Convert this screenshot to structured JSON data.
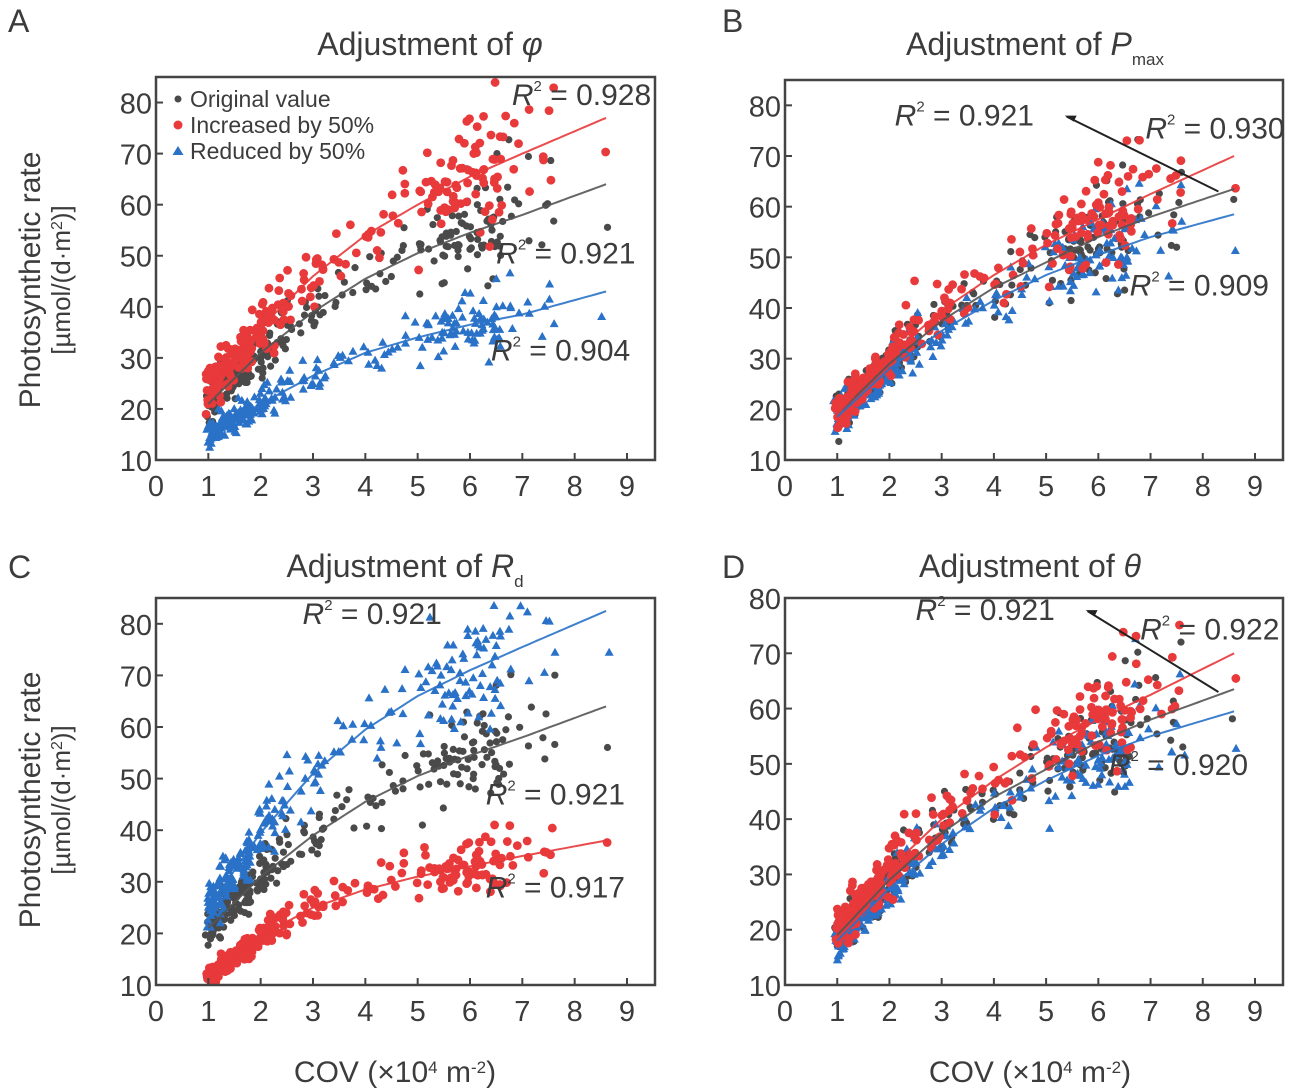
{
  "figure": {
    "ylabel_line1": "Photosynthetic rate",
    "ylabel_line2_prefix": "[µmol/(d·m",
    "ylabel_line2_sup": "2",
    "ylabel_line2_suffix": ")]",
    "xlabel_prefix": "COV (×10",
    "xlabel_sup1": "4",
    "xlabel_mid": " m",
    "xlabel_sup2": "-2",
    "xlabel_suffix": ")"
  },
  "chart_data": [
    {
      "type": "scatter",
      "panel_label": "A",
      "title_prefix": "Adjustment of ",
      "title_symbol": "φ",
      "title_subscript": "",
      "xlabel": "",
      "ylabel": "Photosynthetic rate [µmol/(d·m2)]",
      "xlim": [
        0,
        9.5
      ],
      "ylim": [
        10,
        85
      ],
      "xticks": [
        0,
        1,
        2,
        3,
        4,
        5,
        6,
        7,
        8,
        9
      ],
      "yticks": [
        10,
        20,
        30,
        40,
        50,
        60,
        70,
        80
      ],
      "legend": {
        "position": "top-left",
        "entries": [
          {
            "label": "Original value",
            "marker": "circle",
            "color": "#4a4a4a"
          },
          {
            "label": "Increased by 50%",
            "marker": "circle",
            "color": "#e8393b"
          },
          {
            "label": "Reduced by 50%",
            "marker": "triangle",
            "color": "#2a72c8"
          }
        ]
      },
      "series": [
        {
          "name": "Original value",
          "color": "#4a4a4a",
          "marker": "circle",
          "fit": {
            "x": [
              1.0,
              2.0,
              3.0,
              4.0,
              5.0,
              6.0,
              7.0,
              8.6
            ],
            "y": [
              21,
              31,
              39,
              45.5,
              50.5,
              54.5,
              58,
              64
            ]
          },
          "r2_label": "R² = 0.921"
        },
        {
          "name": "Increased by 50%",
          "color": "#e8393b",
          "marker": "circle",
          "fit": {
            "x": [
              1.0,
              2.0,
              3.0,
              4.0,
              5.0,
              6.0,
              7.0,
              8.6
            ],
            "y": [
              24,
              36,
              46,
              54,
              60,
              65.5,
              70,
              77
            ]
          },
          "r2_label": "R² = 0.928"
        },
        {
          "name": "Reduced by 50%",
          "color": "#2a72c8",
          "marker": "triangle",
          "fit": {
            "x": [
              1.0,
              2.0,
              3.0,
              4.0,
              5.0,
              6.0,
              7.0,
              8.6
            ],
            "y": [
              15,
              21,
              26.5,
              31,
              34,
              36.5,
              38.5,
              43
            ]
          },
          "r2_label": "R² = 0.904"
        }
      ],
      "annotations": [
        {
          "text": "0.928",
          "series": "Increased by 50%",
          "x": 6.8,
          "y": 79.5
        },
        {
          "text": "0.921",
          "series": "Original value",
          "x": 6.5,
          "y": 48.5
        },
        {
          "text": "0.904",
          "series": "Reduced by 50%",
          "x": 6.4,
          "y": 29.5
        }
      ]
    },
    {
      "type": "scatter",
      "panel_label": "B",
      "title_prefix": "Adjustment of ",
      "title_symbol": "P",
      "title_subscript": "max",
      "xlim": [
        0,
        9.5
      ],
      "ylim": [
        10,
        85
      ],
      "xticks": [
        0,
        1,
        2,
        3,
        4,
        5,
        6,
        7,
        8,
        9
      ],
      "yticks": [
        10,
        20,
        30,
        40,
        50,
        60,
        70,
        80
      ],
      "series": [
        {
          "name": "Original value",
          "color": "#4a4a4a",
          "marker": "circle",
          "fit": {
            "x": [
              1.0,
              2.0,
              3.0,
              4.0,
              5.0,
              6.0,
              7.0,
              8.6
            ],
            "y": [
              19,
              29,
              37.5,
              44,
              49,
              54,
              58,
              63.5
            ]
          },
          "r2_label": "R² = 0.921"
        },
        {
          "name": "Increased by 50%",
          "color": "#e8393b",
          "marker": "circle",
          "fit": {
            "x": [
              1.0,
              2.0,
              3.0,
              4.0,
              5.0,
              6.0,
              7.0,
              8.6
            ],
            "y": [
              19,
              30.5,
              39.5,
              46.5,
              52.5,
              57.5,
              62.5,
              70
            ]
          },
          "r2_label": "R² = 0.930"
        },
        {
          "name": "Reduced by 50%",
          "color": "#2a72c8",
          "marker": "triangle",
          "fit": {
            "x": [
              1.0,
              2.0,
              3.0,
              4.0,
              5.0,
              6.0,
              7.0,
              8.6
            ],
            "y": [
              18.5,
              28,
              35.5,
              41.5,
              46.5,
              50.5,
              54,
              58.5
            ]
          },
          "r2_label": "R² = 0.909"
        }
      ],
      "annotations": [
        {
          "text": "0.921",
          "series": "Original value",
          "x": 2.1,
          "y": 76,
          "arrow_to": [
            8.3,
            63
          ]
        },
        {
          "text": "0.930",
          "series": "Increased by 50%",
          "x": 6.9,
          "y": 73.5
        },
        {
          "text": "0.909",
          "series": "Reduced by 50%",
          "x": 6.6,
          "y": 42.5
        }
      ]
    },
    {
      "type": "scatter",
      "panel_label": "C",
      "title_prefix": "Adjustment of ",
      "title_symbol": "R",
      "title_subscript": "d",
      "xlim": [
        0,
        9.5
      ],
      "ylim": [
        10,
        85
      ],
      "xticks": [
        0,
        1,
        2,
        3,
        4,
        5,
        6,
        7,
        8,
        9
      ],
      "yticks": [
        10,
        20,
        30,
        40,
        50,
        60,
        70,
        80
      ],
      "series": [
        {
          "name": "Original value",
          "color": "#4a4a4a",
          "marker": "circle",
          "fit": {
            "x": [
              1.0,
              2.0,
              3.0,
              4.0,
              5.0,
              6.0,
              7.0,
              8.6
            ],
            "y": [
              21,
              31,
              39,
              45.5,
              50.5,
              54.5,
              58,
              64
            ]
          },
          "r2_label": "R² = 0.921"
        },
        {
          "name": "Increased by 50%",
          "color": "#e8393b",
          "marker": "circle",
          "fit": {
            "x": [
              1.0,
              2.0,
              3.0,
              4.0,
              5.0,
              6.0,
              7.0,
              8.6
            ],
            "y": [
              11,
              19.5,
              25,
              28.5,
              31,
              33,
              35,
              38
            ]
          },
          "r2_label": "R² = 0.917"
        },
        {
          "name": "Reduced by 50%",
          "color": "#2a72c8",
          "marker": "triangle",
          "fit": {
            "x": [
              1.0,
              2.0,
              3.0,
              4.0,
              5.0,
              6.0,
              7.0,
              8.6
            ],
            "y": [
              25,
              39.5,
              51,
              59.5,
              66,
              71,
              75.5,
              82.5
            ]
          },
          "r2_label": "R² = 0.921"
        }
      ],
      "annotations": [
        {
          "text": "0.921",
          "series": "Reduced by 50%",
          "x": 2.8,
          "y": 80
        },
        {
          "text": "0.921",
          "series": "Original value",
          "x": 6.3,
          "y": 45
        },
        {
          "text": "0.917",
          "series": "Increased by 50%",
          "x": 6.3,
          "y": 27
        }
      ]
    },
    {
      "type": "scatter",
      "panel_label": "D",
      "title_prefix": "Adjustment of ",
      "title_symbol": "θ",
      "title_subscript": "",
      "xlabel": "COV (×10⁴ m⁻²)",
      "xlim": [
        0,
        9.5
      ],
      "ylim": [
        10,
        80
      ],
      "xticks": [
        0,
        1,
        2,
        3,
        4,
        5,
        6,
        7,
        8,
        9
      ],
      "yticks": [
        10,
        20,
        30,
        40,
        50,
        60,
        70,
        80
      ],
      "series": [
        {
          "name": "Original value",
          "color": "#4a4a4a",
          "marker": "circle",
          "fit": {
            "x": [
              1.0,
              2.0,
              3.0,
              4.0,
              5.0,
              6.0,
              7.0,
              8.6
            ],
            "y": [
              19,
              29,
              37.5,
              44,
              49,
              54,
              58,
              63.5
            ]
          },
          "r2_label": "R² = 0.921"
        },
        {
          "name": "Increased by 50%",
          "color": "#e8393b",
          "marker": "circle",
          "fit": {
            "x": [
              1.0,
              2.0,
              3.0,
              4.0,
              5.0,
              6.0,
              7.0,
              8.6
            ],
            "y": [
              20,
              31,
              40,
              47,
              53,
              58,
              62.5,
              70
            ]
          },
          "r2_label": "R² = 0.922"
        },
        {
          "name": "Reduced by 50%",
          "color": "#2a72c8",
          "marker": "triangle",
          "fit": {
            "x": [
              1.0,
              2.0,
              3.0,
              4.0,
              5.0,
              6.0,
              7.0,
              8.6
            ],
            "y": [
              18,
              27.5,
              35.5,
              42,
              47,
              51.5,
              55,
              59.5
            ]
          },
          "r2_label": "R² = 0.920"
        }
      ],
      "annotations": [
        {
          "text": "0.921",
          "series": "Original value",
          "x": 2.5,
          "y": 76,
          "arrow_to": [
            8.3,
            63
          ]
        },
        {
          "text": "0.922",
          "series": "Increased by 50%",
          "x": 6.8,
          "y": 72.5
        },
        {
          "text": "0.920",
          "series": "Reduced by 50%",
          "x": 6.2,
          "y": 48
        }
      ]
    }
  ]
}
